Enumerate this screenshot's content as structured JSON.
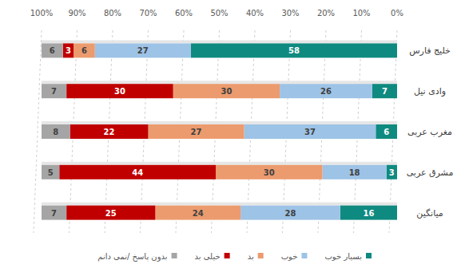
{
  "chart_data": {
    "type": "bar",
    "orientation": "horizontal",
    "stacked": true,
    "data_labels": true,
    "grid": true,
    "legend": "bottom",
    "categories": [
      "خلیج فارس",
      "وادی نیل",
      "مغرب عربی",
      "مشرق عربی",
      "میانگین"
    ],
    "xlim": [
      0,
      100
    ],
    "xticks": [
      {
        "value": 0,
        "label": "0%"
      },
      {
        "value": 10,
        "label": "10%"
      },
      {
        "value": 20,
        "label": "20%"
      },
      {
        "value": 30,
        "label": "30%"
      },
      {
        "value": 40,
        "label": "40%"
      },
      {
        "value": 50,
        "label": "50%"
      },
      {
        "value": 60,
        "label": "60%"
      },
      {
        "value": 70,
        "label": "70%"
      },
      {
        "value": 80,
        "label": "80%"
      },
      {
        "value": 90,
        "label": "90%"
      },
      {
        "value": 100,
        "label": "100%"
      }
    ],
    "series": [
      {
        "name": "بسیار خوب",
        "color": "#0f8a80",
        "values": [
          58,
          7,
          6,
          3,
          16
        ]
      },
      {
        "name": "خوب",
        "color": "#9dc3e6",
        "values": [
          27,
          26,
          37,
          18,
          28
        ]
      },
      {
        "name": "بد",
        "color": "#ec9b6e",
        "values": [
          6,
          30,
          27,
          30,
          24
        ]
      },
      {
        "name": "خیلی بد",
        "color": "#c00000",
        "values": [
          3,
          30,
          22,
          44,
          25
        ]
      },
      {
        "name": "بدون پاسخ /نمی دانم",
        "color": "#a5a5a5",
        "values": [
          6,
          7,
          8,
          5,
          7
        ]
      }
    ]
  }
}
